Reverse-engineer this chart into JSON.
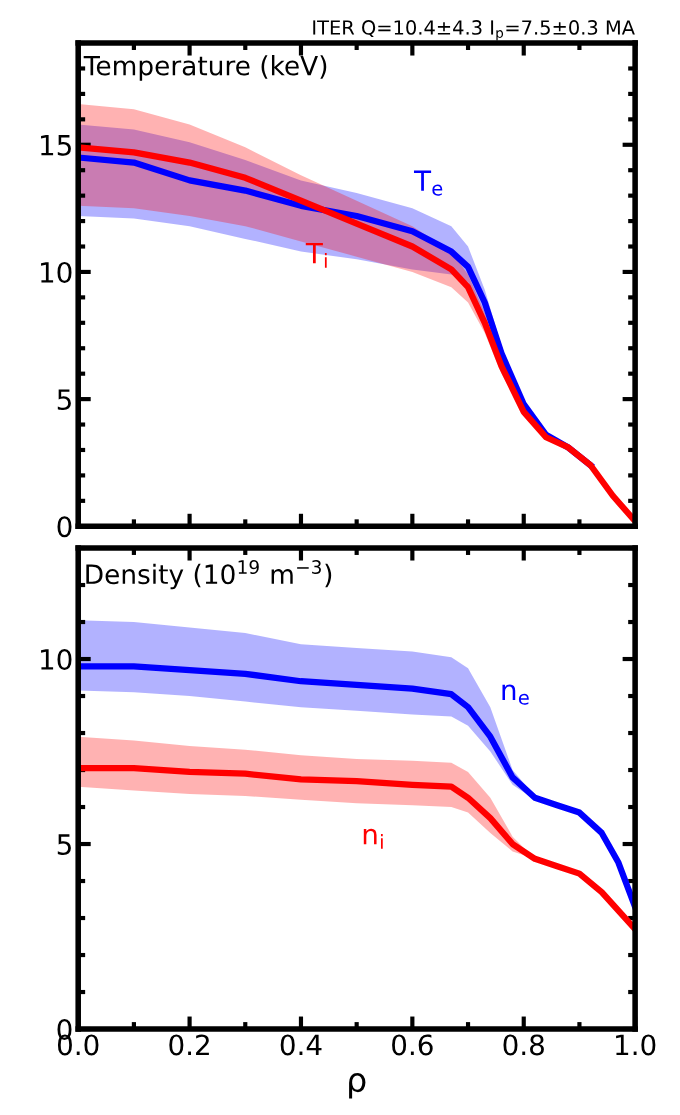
{
  "chart_data": [
    {
      "type": "line",
      "title": "ITER Q=10.4±4.3 I$_{p}$=7.5±0.3 MA",
      "ylabel": "Temperature (keV)",
      "x": [
        0,
        0.1,
        0.2,
        0.3,
        0.4,
        0.5,
        0.6,
        0.67,
        0.7,
        0.73,
        0.76,
        0.8,
        0.84,
        0.88,
        0.92,
        0.96,
        1.0
      ],
      "series": [
        {
          "name": "T$_{e}$",
          "color": "#0000ff",
          "values": [
            14.5,
            14.3,
            13.6,
            13.2,
            12.6,
            12.2,
            11.6,
            10.8,
            10.2,
            8.8,
            6.8,
            4.8,
            3.6,
            3.1,
            2.4,
            null,
            null
          ],
          "lower": [
            12.2,
            12.1,
            11.8,
            11.3,
            10.8,
            10.5,
            10.1,
            9.9,
            9.6,
            8.3,
            6.5,
            4.7,
            3.6,
            3.1,
            2.4,
            1.2,
            0.2
          ],
          "upper": [
            15.8,
            15.6,
            15.1,
            14.4,
            13.6,
            13.1,
            12.5,
            11.8,
            11.0,
            9.3,
            7.1,
            4.9,
            3.6,
            3.1,
            2.4,
            1.2,
            0.2
          ]
        },
        {
          "name": "T$_{i}$",
          "color": "#ff0000",
          "values": [
            14.9,
            14.7,
            14.3,
            13.7,
            12.8,
            11.9,
            11.0,
            10.1,
            9.4,
            8.0,
            6.3,
            4.5,
            3.5,
            3.1,
            2.4,
            1.2,
            0.2
          ],
          "lower": [
            12.6,
            12.5,
            12.2,
            11.8,
            11.2,
            10.6,
            10.0,
            9.4,
            8.8,
            7.6,
            6.0,
            4.4,
            3.5,
            3.1,
            2.4,
            1.2,
            0.2
          ],
          "upper": [
            16.6,
            16.4,
            15.8,
            14.9,
            13.8,
            12.8,
            11.8,
            10.8,
            9.9,
            8.4,
            6.5,
            4.6,
            3.5,
            3.1,
            2.4,
            1.2,
            0.2
          ]
        }
      ],
      "xlim": [
        0,
        1
      ],
      "ylim": [
        0,
        19
      ],
      "yticks": [
        0,
        5,
        10,
        15
      ],
      "tick_labels": "y",
      "grid": false,
      "marker": "none",
      "line_style": "solid"
    },
    {
      "type": "line",
      "ylabel": "Density (10$^{19}$ m$^{−3}$)",
      "xlabel": "ρ",
      "x": [
        0,
        0.1,
        0.2,
        0.3,
        0.4,
        0.5,
        0.6,
        0.67,
        0.7,
        0.74,
        0.78,
        0.82,
        0.86,
        0.9,
        0.94,
        0.97,
        1.0
      ],
      "series": [
        {
          "name": "n$_{e}$",
          "color": "#0000ff",
          "values": [
            9.8,
            9.8,
            9.7,
            9.6,
            9.4,
            9.3,
            9.2,
            9.05,
            8.7,
            7.9,
            6.8,
            6.25,
            6.05,
            5.85,
            5.3,
            4.5,
            3.3
          ],
          "lower": [
            9.15,
            9.1,
            9.0,
            8.85,
            8.7,
            8.6,
            8.5,
            8.45,
            8.2,
            7.5,
            6.6,
            6.2,
            6.05,
            5.85,
            5.3,
            4.5,
            3.3
          ],
          "upper": [
            11.05,
            11.0,
            10.85,
            10.7,
            10.4,
            10.3,
            10.2,
            10.05,
            9.75,
            8.7,
            7.0,
            6.3,
            6.05,
            5.85,
            5.3,
            4.5,
            3.3
          ]
        },
        {
          "name": "n$_{i}$",
          "color": "#ff0000",
          "values": [
            7.05,
            7.05,
            6.95,
            6.9,
            6.75,
            6.7,
            6.6,
            6.55,
            6.25,
            5.7,
            5.0,
            4.6,
            4.4,
            4.2,
            3.7,
            3.2,
            2.7
          ],
          "lower": [
            6.55,
            6.45,
            6.35,
            6.3,
            6.2,
            6.1,
            6.05,
            6.0,
            5.85,
            5.3,
            4.8,
            4.6,
            4.4,
            4.2,
            3.7,
            3.2,
            2.7
          ],
          "upper": [
            7.9,
            7.8,
            7.65,
            7.55,
            7.4,
            7.3,
            7.25,
            7.2,
            6.95,
            6.25,
            5.2,
            4.6,
            4.4,
            4.2,
            3.7,
            3.2,
            2.7
          ]
        }
      ],
      "xlim": [
        0,
        1
      ],
      "ylim": [
        0,
        13
      ],
      "xticks": [
        {
          "value": 0,
          "label": "0.0"
        },
        {
          "value": 0.2,
          "label": "0.2"
        },
        {
          "value": 0.4,
          "label": "0.4"
        },
        {
          "value": 0.6,
          "label": "0.6"
        },
        {
          "value": 0.8,
          "label": "0.8"
        },
        {
          "value": 1,
          "label": "1.0"
        }
      ],
      "yticks": [
        0,
        5,
        10
      ],
      "grid": false,
      "marker": "none",
      "line_style": "solid"
    }
  ]
}
